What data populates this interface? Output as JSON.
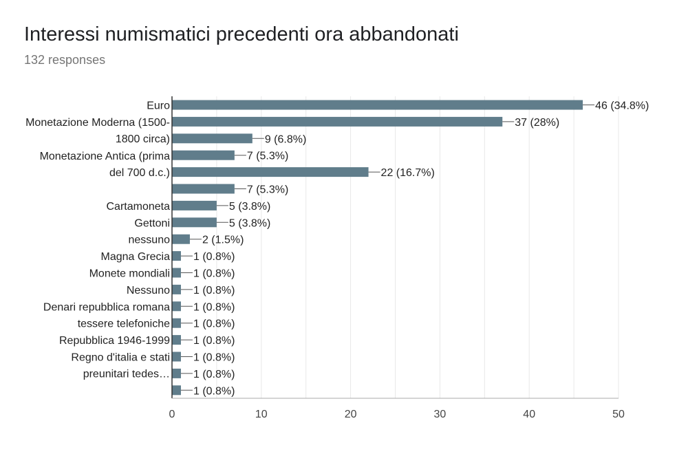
{
  "title": "Interessi numismatici precedenti ora abbandonati",
  "subtitle": "132 responses",
  "colors": {
    "bar": "#607d8b",
    "grid": "#e8e8e8",
    "axis": "#333333",
    "label": "#222222"
  },
  "chart_data": {
    "type": "bar",
    "orientation": "horizontal",
    "title": "Interessi numismatici precedenti ora abbandonati",
    "xlim": [
      0,
      50
    ],
    "xticks": [
      0,
      10,
      20,
      30,
      40,
      50
    ],
    "grid": true,
    "legend": "none",
    "values": [
      46,
      37,
      9,
      7,
      22,
      7,
      5,
      5,
      2,
      1,
      1,
      1,
      1,
      1,
      1,
      1,
      1,
      1
    ],
    "value_labels": [
      "46 (34.8%)",
      "37 (28%)",
      "9 (6.8%)",
      "7 (5.3%)",
      "22 (16.7%)",
      "7 (5.3%)",
      "5 (3.8%)",
      "5 (3.8%)",
      "2 (1.5%)",
      "1 (0.8%)",
      "1 (0.8%)",
      "1 (0.8%)",
      "1 (0.8%)",
      "1 (0.8%)",
      "1 (0.8%)",
      "1 (0.8%)",
      "1 (0.8%)",
      "1 (0.8%)"
    ],
    "category_labels": [
      {
        "lines": [
          "Euro"
        ],
        "center_bar": 0
      },
      {
        "lines": [
          "Monetazione Moderna (1500-",
          "1800 circa)"
        ],
        "center_bar": 1.5
      },
      {
        "lines": [
          "Monetazione Antica (prima",
          "del 700 d.c.)"
        ],
        "center_bar": 3.5
      },
      {
        "lines": [
          "Cartamoneta"
        ],
        "center_bar": 6
      },
      {
        "lines": [
          "Gettoni"
        ],
        "center_bar": 7
      },
      {
        "lines": [
          "nessuno"
        ],
        "center_bar": 8
      },
      {
        "lines": [
          "Magna Grecia"
        ],
        "center_bar": 9
      },
      {
        "lines": [
          "Monete mondiali"
        ],
        "center_bar": 10
      },
      {
        "lines": [
          "Nessuno"
        ],
        "center_bar": 11
      },
      {
        "lines": [
          "Denari repubblica romana"
        ],
        "center_bar": 12
      },
      {
        "lines": [
          "tessere telefoniche"
        ],
        "center_bar": 13
      },
      {
        "lines": [
          "Repubblica 1946-1999"
        ],
        "center_bar": 14
      },
      {
        "lines": [
          "Regno d'italia e stati",
          "preunitari tedes…"
        ],
        "center_bar": 15.5
      }
    ]
  }
}
